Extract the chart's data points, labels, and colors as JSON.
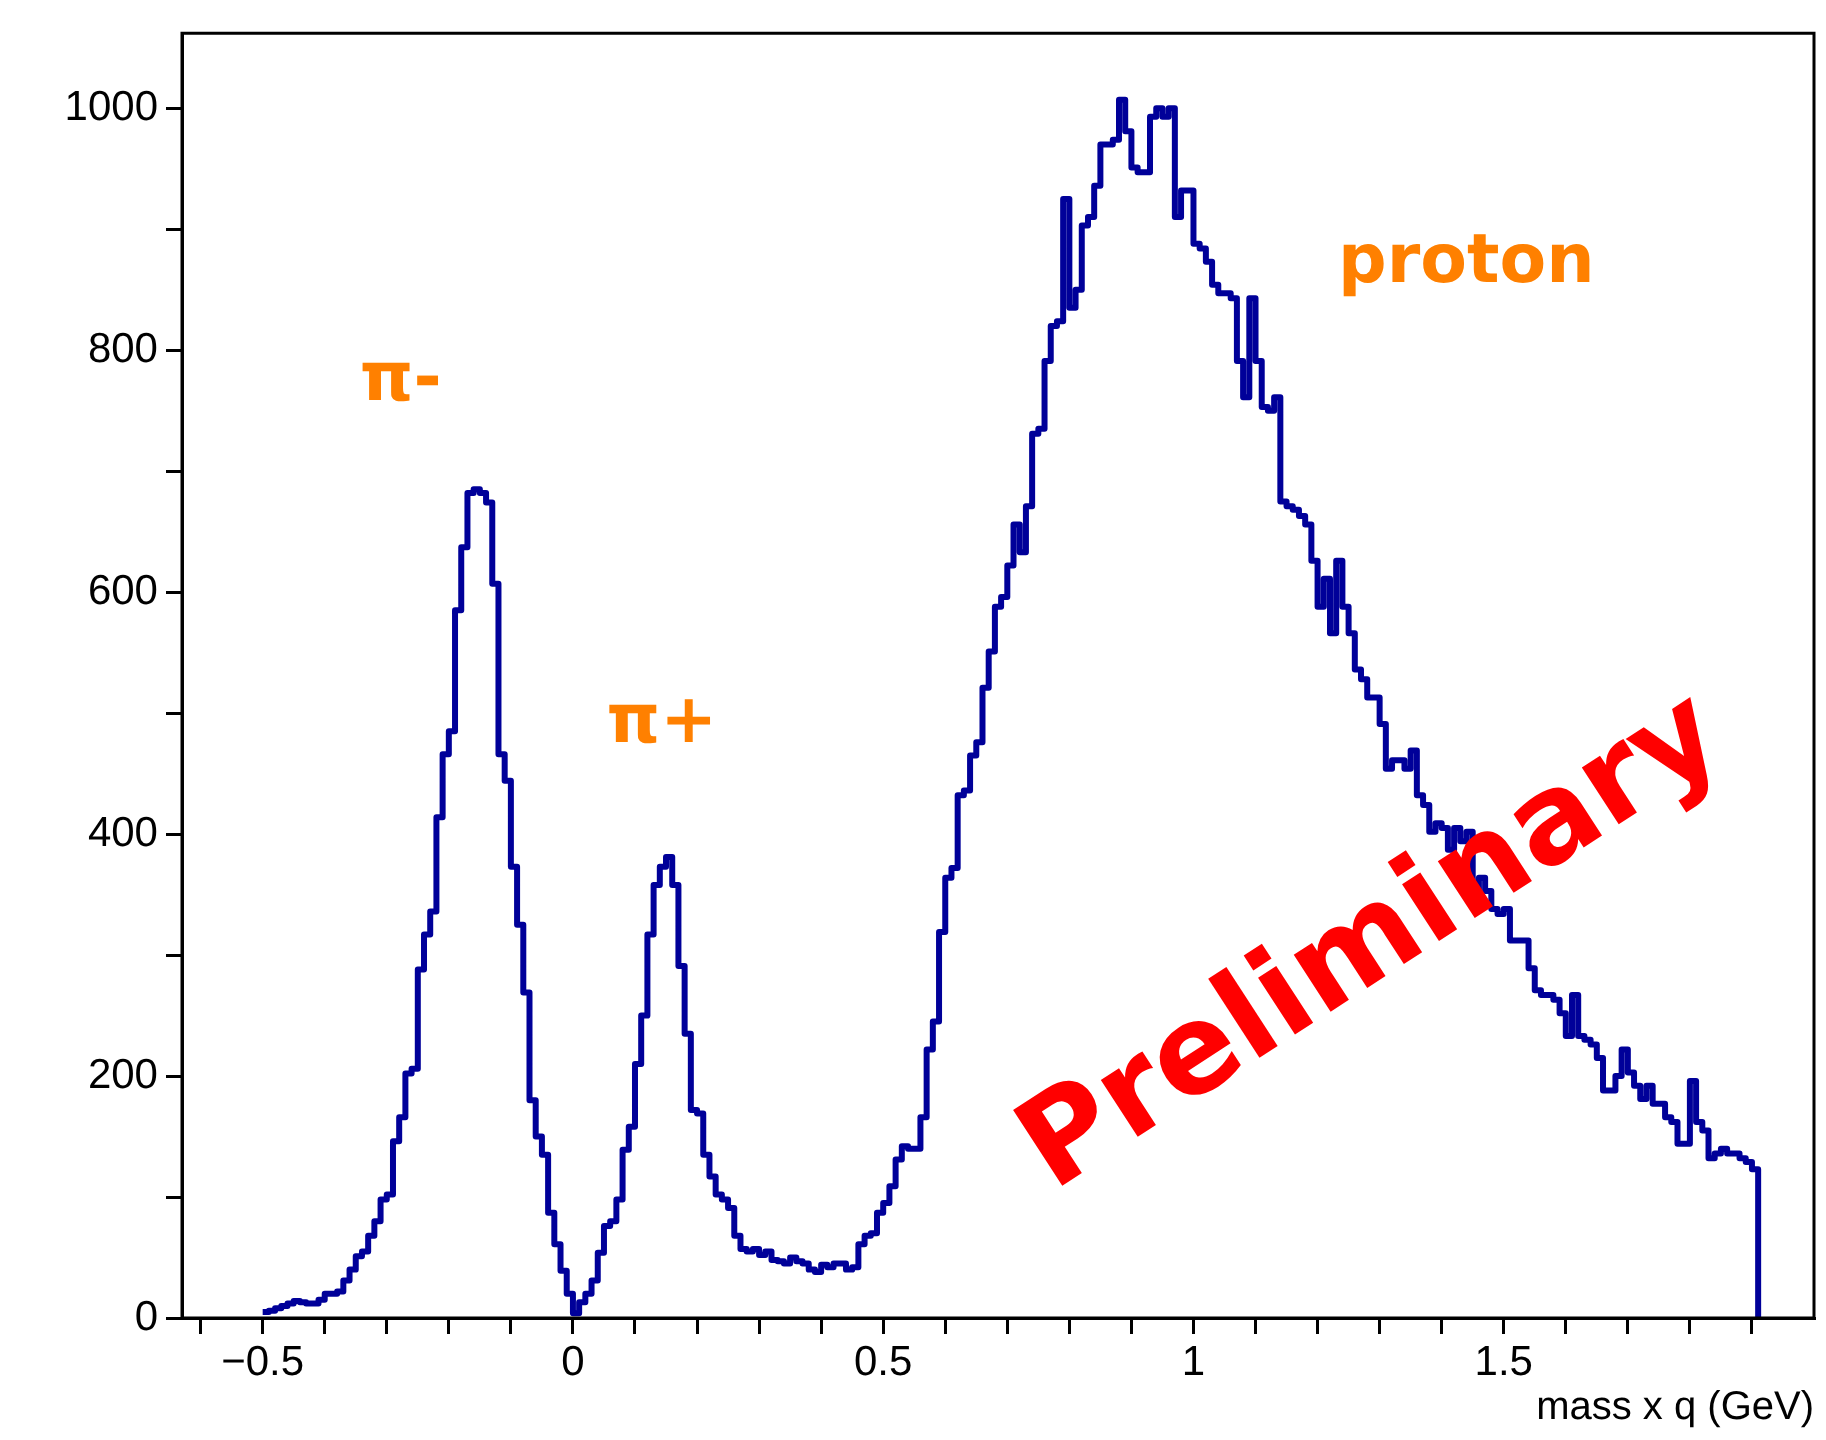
{
  "chart_data": {
    "type": "histogram",
    "xlabel": "mass x q (GeV)",
    "bins": [
      -0.5,
      -0.49,
      -0.48,
      -0.47,
      -0.46,
      -0.45,
      -0.44,
      -0.43,
      -0.42,
      -0.41,
      -0.4,
      -0.39,
      -0.38,
      -0.37,
      -0.36,
      -0.35,
      -0.34,
      -0.33,
      -0.32,
      -0.31,
      -0.3,
      -0.29,
      -0.28,
      -0.27,
      -0.26,
      -0.25,
      -0.24,
      -0.23,
      -0.22,
      -0.21,
      -0.2,
      -0.19,
      -0.18,
      -0.17,
      -0.16,
      -0.15,
      -0.14,
      -0.13,
      -0.12,
      -0.11,
      -0.1,
      -0.09,
      -0.08,
      -0.07,
      -0.06,
      -0.05,
      -0.04,
      -0.03,
      -0.02,
      -0.01,
      0,
      0.01,
      0.02,
      0.03,
      0.04,
      0.05,
      0.06,
      0.07,
      0.08,
      0.09,
      0.1,
      0.11,
      0.12,
      0.13,
      0.14,
      0.15,
      0.16,
      0.17,
      0.18,
      0.19,
      0.2,
      0.21,
      0.22,
      0.23,
      0.24,
      0.25,
      0.26,
      0.27,
      0.28,
      0.29,
      0.3,
      0.31,
      0.32,
      0.33,
      0.34,
      0.35,
      0.36,
      0.37,
      0.38,
      0.39,
      0.4,
      0.41,
      0.42,
      0.43,
      0.44,
      0.45,
      0.46,
      0.47,
      0.48,
      0.49,
      0.5,
      0.51,
      0.52,
      0.53,
      0.54,
      0.55,
      0.56,
      0.57,
      0.58,
      0.59,
      0.6,
      0.61,
      0.62,
      0.63,
      0.64,
      0.65,
      0.66,
      0.67,
      0.68,
      0.69,
      0.7,
      0.71,
      0.72,
      0.73,
      0.74,
      0.75,
      0.76,
      0.77,
      0.78,
      0.79,
      0.8,
      0.81,
      0.82,
      0.83,
      0.84,
      0.85,
      0.86,
      0.87,
      0.88,
      0.89,
      0.9,
      0.91,
      0.92,
      0.93,
      0.94,
      0.95,
      0.96,
      0.97,
      0.98,
      0.99,
      1,
      1.01,
      1.02,
      1.03,
      1.04,
      1.05,
      1.06,
      1.07,
      1.08,
      1.09,
      1.1,
      1.11,
      1.12,
      1.13,
      1.14,
      1.15,
      1.16,
      1.17,
      1.18,
      1.19,
      1.2,
      1.21,
      1.22,
      1.23,
      1.24,
      1.25,
      1.26,
      1.27,
      1.28,
      1.29,
      1.3,
      1.31,
      1.32,
      1.33,
      1.34,
      1.35,
      1.36,
      1.37,
      1.38,
      1.39,
      1.4,
      1.41,
      1.42,
      1.43,
      1.44,
      1.45,
      1.46,
      1.47,
      1.48,
      1.49,
      1.5,
      1.51,
      1.52,
      1.53,
      1.54,
      1.55,
      1.56,
      1.57,
      1.58,
      1.59,
      1.6,
      1.61,
      1.62,
      1.63,
      1.64,
      1.65,
      1.66,
      1.67,
      1.68,
      1.69,
      1.7,
      1.71,
      1.72,
      1.73,
      1.74,
      1.75,
      1.76,
      1.77,
      1.78,
      1.79,
      1.8,
      1.81,
      1.82,
      1.83,
      1.84,
      1.85,
      1.86,
      1.87,
      1.88,
      1.89,
      1.9,
      1.91
    ],
    "values": [
      5,
      6,
      8,
      10,
      12,
      14,
      13,
      12,
      12,
      15,
      20,
      20,
      22,
      31,
      40,
      51,
      55,
      68,
      80,
      98,
      102,
      146,
      166,
      202,
      206,
      288,
      317,
      336,
      414,
      466,
      485,
      585,
      637,
      682,
      685,
      682,
      674,
      607,
      466,
      444,
      373,
      325,
      269,
      180,
      150,
      135,
      87,
      61,
      39,
      20,
      4,
      13,
      20,
      31,
      54,
      76,
      80,
      98,
      139,
      158,
      210,
      250,
      317,
      358,
      373,
      381,
      358,
      291,
      235,
      172,
      169,
      135,
      117,
      102,
      98,
      91,
      68,
      57,
      55,
      57,
      52,
      55,
      48,
      47,
      45,
      50,
      47,
      45,
      40,
      38,
      44,
      42,
      45,
      45,
      40,
      42,
      61,
      68,
      70,
      87,
      95,
      109,
      131,
      142,
      140,
      140,
      166,
      222,
      245,
      319,
      364,
      372,
      432,
      436,
      465,
      476,
      521,
      551,
      588,
      596,
      622,
      656,
      633,
      671,
      731,
      735,
      791,
      820,
      824,
      925,
      835,
      850,
      903,
      910,
      936,
      970,
      970,
      974,
      1007,
      981,
      951,
      947,
      947,
      993,
      1000,
      993,
      1000,
      910,
      932,
      932,
      888,
      884,
      873,
      854,
      847,
      847,
      843,
      791,
      761,
      843,
      791,
      753,
      750,
      761,
      675,
      671,
      668,
      663,
      656,
      626,
      588,
      611,
      566,
      626,
      588,
      566,
      536,
      528,
      513,
      513,
      491,
      454,
      461,
      461,
      454,
      469,
      432,
      424,
      402,
      409,
      405,
      387,
      405,
      394,
      402,
      349,
      364,
      353,
      338,
      334,
      338,
      312,
      312,
      312,
      289,
      271,
      267,
      267,
      263,
      252,
      233,
      267,
      233,
      230,
      226,
      215,
      188,
      188,
      200,
      222,
      203,
      192,
      181,
      192,
      177,
      177,
      166,
      162,
      144,
      144,
      196,
      162,
      155,
      132,
      136,
      140,
      136,
      136,
      132,
      129,
      123
    ],
    "color": "#000099",
    "xlim": [
      -0.63,
      2.0
    ],
    "xticks": [
      {
        "value": -0.6,
        "label": null
      },
      {
        "value": -0.5,
        "label": "−0.5"
      },
      {
        "value": -0.4,
        "label": null
      },
      {
        "value": -0.3,
        "label": null
      },
      {
        "value": -0.2,
        "label": null
      },
      {
        "value": -0.1,
        "label": null
      },
      0,
      {
        "value": 0.1,
        "label": null
      },
      {
        "value": 0.2,
        "label": null
      },
      {
        "value": 0.3,
        "label": null
      },
      {
        "value": 0.4,
        "label": null
      },
      0.5,
      {
        "value": 0.6,
        "label": null
      },
      {
        "value": 0.7,
        "label": null
      },
      {
        "value": 0.8,
        "label": null
      },
      {
        "value": 0.9,
        "label": null
      },
      1,
      {
        "value": 1.1,
        "label": null
      },
      {
        "value": 1.2,
        "label": null
      },
      {
        "value": 1.3,
        "label": null
      },
      {
        "value": 1.4,
        "label": null
      },
      1.5,
      {
        "value": 1.6,
        "label": null
      },
      {
        "value": 1.7,
        "label": null
      },
      {
        "value": 1.8,
        "label": null
      },
      {
        "value": 1.9,
        "label": null
      }
    ],
    "ylim": [
      0,
      1062
    ],
    "yticks": [
      0,
      {
        "value": 100,
        "label": null
      },
      200,
      {
        "value": 300,
        "label": null
      },
      400,
      {
        "value": 500,
        "label": null
      },
      600,
      {
        "value": 700,
        "label": null
      },
      800,
      {
        "value": 900,
        "label": null
      },
      1000
    ],
    "grid": false,
    "legend": false,
    "annotations": [
      "π-",
      "π+",
      "proton",
      "Preliminary"
    ]
  }
}
